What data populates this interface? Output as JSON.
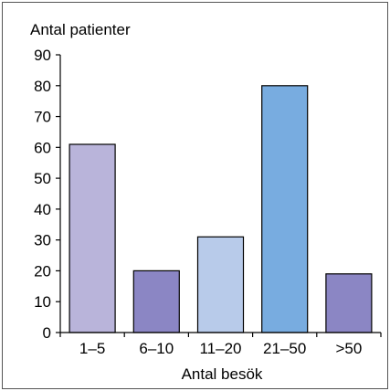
{
  "chart_data": {
    "type": "bar",
    "categories": [
      "1–5",
      "6–10",
      "11–20",
      "21–50",
      ">50"
    ],
    "values": [
      61,
      20,
      31,
      80,
      19
    ],
    "bar_colors": [
      "#b9b4da",
      "#8b86c4",
      "#b8cbea",
      "#78ace0",
      "#8b86c4"
    ],
    "ylabel": "Antal patienter",
    "xlabel": "Antal besök",
    "ylim": [
      0,
      90
    ],
    "yticks": [
      0,
      10,
      20,
      30,
      40,
      50,
      60,
      70,
      80,
      90
    ],
    "grid": false,
    "legend": "none"
  }
}
